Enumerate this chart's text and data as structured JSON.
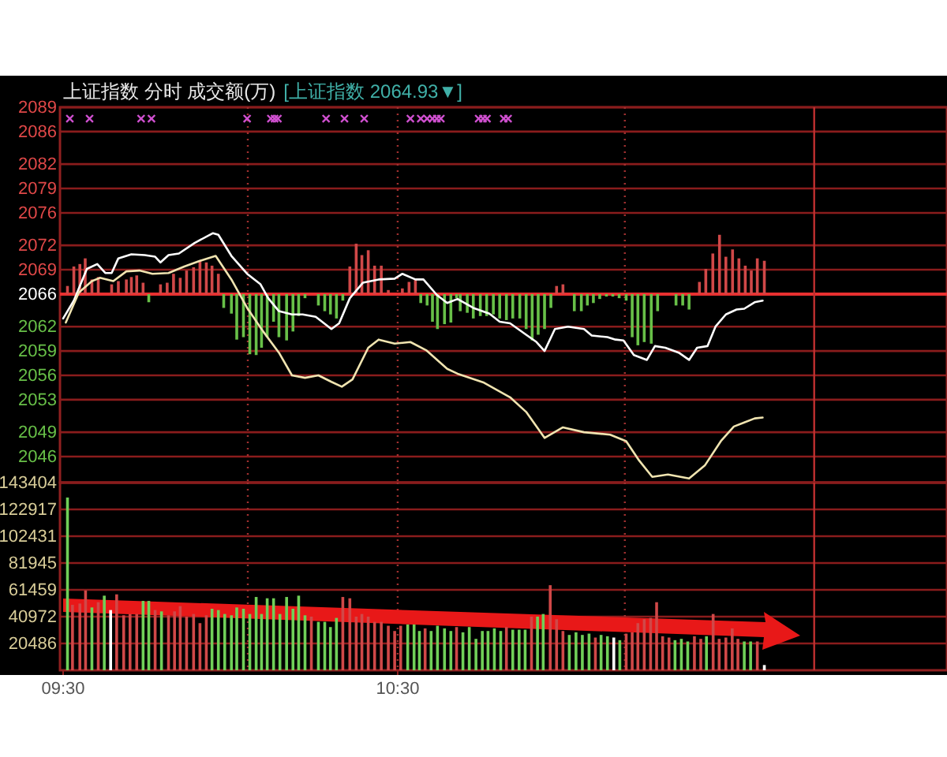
{
  "chart_data": [
    {
      "type": "line",
      "title": "上证指数   分时 成交额(万)",
      "subtitle": "[上证指数 2064.93▼]",
      "xlim": [
        9.5,
        12.142
      ],
      "ylim": [
        2042.8,
        2089
      ],
      "yticks": [
        2089,
        2086,
        2082,
        2079,
        2076,
        2072,
        2069,
        2066,
        2062,
        2059,
        2056,
        2053,
        2049,
        2046
      ],
      "grid": "y",
      "tick_labels": "y",
      "ref_lines": [
        {
          "axis": "y",
          "value": 2066,
          "color": "#e83030",
          "line_style": "solid"
        },
        {
          "axis": "x",
          "value": 10.052,
          "color": "#a03030",
          "line_style": "dotted"
        },
        {
          "axis": "x",
          "value": 10.5,
          "color": "#a03030",
          "line_style": "dotted"
        },
        {
          "axis": "x",
          "value": 11.179,
          "color": "#a03030",
          "line_style": "dotted"
        },
        {
          "axis": "x",
          "value": 11.745,
          "color": "#c03030",
          "line_style": "solid"
        }
      ],
      "series": [
        {
          "type": "bar",
          "color": "#d04848",
          "base": [
            2066,
            2066,
            2066,
            2066,
            2066,
            2066,
            2066,
            2066,
            2066,
            2066,
            2066,
            2066,
            2066,
            2066,
            2066,
            2066,
            2066,
            2066,
            2066,
            2066,
            2066,
            2066,
            2066,
            2066,
            2066,
            2066,
            2066,
            2066,
            2066,
            2066,
            2066,
            2066,
            2066,
            2066,
            2066,
            2066,
            2066,
            2066,
            2066,
            2066,
            2066,
            2066,
            2066,
            2066,
            2066
          ],
          "x": [
            9.513,
            9.532,
            9.55,
            9.566,
            9.586,
            9.605,
            9.645,
            9.665,
            9.689,
            9.704,
            9.72,
            9.739,
            9.791,
            9.811,
            9.83,
            9.85,
            9.869,
            9.89,
            9.909,
            9.928,
            9.945,
            9.964,
            10.357,
            10.376,
            10.393,
            10.412,
            10.431,
            10.451,
            10.472,
            10.514,
            10.534,
            10.553,
            10.975,
            10.994,
            11.402,
            11.421,
            11.442,
            11.462,
            11.481,
            11.501,
            11.52,
            11.539,
            11.557,
            11.575,
            11.596
          ],
          "values": [
            1.0,
            3.4,
            3.7,
            4.4,
            1.8,
            2.1,
            1.2,
            1.6,
            1.8,
            2.1,
            2.3,
            1.4,
            1.2,
            1.4,
            2.5,
            2.0,
            2.9,
            3.3,
            4.1,
            3.9,
            3.5,
            2.5,
            3.4,
            6.2,
            4.8,
            5.4,
            3.5,
            3.5,
            0.5,
            0.7,
            1.5,
            1.8,
            1.0,
            1.2,
            1.5,
            3.1,
            5.0,
            7.3,
            4.6,
            5.5,
            4.4,
            3.5,
            2.9,
            4.4,
            4.1
          ]
        },
        {
          "type": "bar",
          "color": "#68c048",
          "base": [
            2066,
            2066,
            2066,
            2066,
            2066,
            2066,
            2066,
            2066,
            2066,
            2066,
            2066,
            2066,
            2066,
            2066,
            2066,
            2066,
            2066,
            2066,
            2066,
            2066,
            2066,
            2066,
            2066,
            2066,
            2066,
            2066,
            2066,
            2066,
            2066,
            2066,
            2066,
            2066,
            2066,
            2066,
            2066,
            2066,
            2066,
            2066,
            2066,
            2066,
            2066,
            2066,
            2066,
            2066,
            2066,
            2066,
            2066,
            2066,
            2066,
            2066,
            2066,
            2066,
            2066,
            2066,
            2066,
            2066,
            2066,
            2066,
            2066
          ],
          "x": [
            9.756,
            9.98,
            10.003,
            10.019,
            10.039,
            10.058,
            10.077,
            10.093,
            10.11,
            10.129,
            10.145,
            10.168,
            10.187,
            10.204,
            10.223,
            10.263,
            10.282,
            10.299,
            10.317,
            10.336,
            10.569,
            10.588,
            10.604,
            10.619,
            10.64,
            10.659,
            10.676,
            10.687,
            10.708,
            10.726,
            10.747,
            10.766,
            10.786,
            10.805,
            10.825,
            10.844,
            10.865,
            10.884,
            10.902,
            10.92,
            10.939,
            10.958,
            11.028,
            11.049,
            11.067,
            11.085,
            11.104,
            11.124,
            11.143,
            11.162,
            11.183,
            11.201,
            11.218,
            11.237,
            11.258,
            11.277,
            11.332,
            11.352,
            11.371
          ],
          "values": [
            -1.0,
            -1.7,
            -2.4,
            -5.6,
            -5.3,
            -7.4,
            -7.5,
            -6.6,
            -5.3,
            -3.4,
            -5.3,
            -5.7,
            -4.6,
            -2.7,
            -0.5,
            -1.4,
            -2.1,
            -2.5,
            -3.0,
            -0.8,
            -1.1,
            -1.4,
            -3.4,
            -4.3,
            -3.7,
            -3.5,
            -0.5,
            -2.1,
            -2.3,
            -3.0,
            -2.7,
            -2.7,
            -2.5,
            -3.0,
            -3.2,
            -3.0,
            -3.0,
            -4.3,
            -5.7,
            -5.0,
            -4.3,
            -1.7,
            -2.1,
            -2.1,
            -1.4,
            -1.1,
            -0.6,
            -0.3,
            -0.3,
            -0.5,
            -0.8,
            -5.3,
            -6.3,
            -5.9,
            -6.1,
            -2.1,
            -1.4,
            -1.4,
            -1.9
          ]
        },
        {
          "color": "#ffffff",
          "x": [
            9.5,
            9.532,
            9.571,
            9.602,
            9.626,
            9.645,
            9.665,
            9.704,
            9.744,
            9.775,
            9.791,
            9.815,
            9.846,
            9.893,
            9.948,
            9.964,
            10.003,
            10.05,
            10.09,
            10.113,
            10.145,
            10.184,
            10.216,
            10.255,
            10.302,
            10.325,
            10.357,
            10.396,
            10.443,
            10.491,
            10.514,
            10.553,
            10.577,
            10.617,
            10.648,
            10.679,
            10.726,
            10.774,
            10.805,
            10.836,
            10.884,
            10.915,
            10.939,
            10.97,
            11.009,
            11.057,
            11.08,
            11.127,
            11.151,
            11.175,
            11.206,
            11.245,
            11.269,
            11.3,
            11.34,
            11.371,
            11.395,
            11.426,
            11.45,
            11.481,
            11.513,
            11.536,
            11.567,
            11.591
          ],
          "values": [
            2063.0,
            2065.2,
            2069.1,
            2069.7,
            2068.6,
            2068.6,
            2070.4,
            2070.9,
            2070.8,
            2070.6,
            2069.9,
            2070.8,
            2071.0,
            2072.3,
            2073.5,
            2073.3,
            2070.7,
            2068.5,
            2067.2,
            2065.5,
            2063.9,
            2063.5,
            2063.5,
            2063.2,
            2061.7,
            2062.4,
            2065.5,
            2067.4,
            2067.8,
            2067.9,
            2068.5,
            2067.8,
            2067.8,
            2065.9,
            2064.9,
            2065.4,
            2064.3,
            2063.6,
            2062.6,
            2062.4,
            2061.0,
            2060.1,
            2059.0,
            2061.7,
            2062.0,
            2061.7,
            2060.9,
            2060.7,
            2060.4,
            2060.3,
            2058.5,
            2057.9,
            2059.6,
            2059.4,
            2058.8,
            2057.9,
            2059.4,
            2059.6,
            2062.0,
            2063.5,
            2064.1,
            2064.2,
            2065.0,
            2065.2
          ]
        },
        {
          "color": "#f0e4b0",
          "x": [
            9.508,
            9.547,
            9.586,
            9.61,
            9.65,
            9.689,
            9.728,
            9.767,
            9.815,
            9.862,
            9.909,
            9.956,
            10.003,
            10.05,
            10.098,
            10.145,
            10.184,
            10.223,
            10.263,
            10.302,
            10.333,
            10.365,
            10.412,
            10.443,
            10.491,
            10.538,
            10.585,
            10.648,
            10.679,
            10.758,
            10.836,
            10.884,
            10.939,
            10.994,
            11.057,
            11.135,
            11.183,
            11.222,
            11.261,
            11.308,
            11.371,
            11.418,
            11.466,
            11.505,
            11.536,
            11.567,
            11.591
          ],
          "values": [
            2062.5,
            2066.2,
            2067.6,
            2068.0,
            2067.6,
            2068.8,
            2068.9,
            2068.5,
            2068.6,
            2069.4,
            2070.1,
            2070.7,
            2067.8,
            2064.3,
            2061.4,
            2058.8,
            2056.0,
            2055.7,
            2056.0,
            2055.2,
            2054.6,
            2055.5,
            2059.4,
            2060.4,
            2059.9,
            2060.1,
            2059.1,
            2056.8,
            2056.2,
            2055.1,
            2053.3,
            2051.5,
            2048.3,
            2049.6,
            2049.0,
            2048.7,
            2047.9,
            2045.5,
            2043.5,
            2043.8,
            2043.3,
            2044.9,
            2047.9,
            2049.7,
            2050.2,
            2050.7,
            2050.8
          ]
        },
        {
          "type": "scatter",
          "color": "#d050d0",
          "marker": "cross",
          "x": [
            9.52,
            9.579,
            9.733,
            9.764,
            10.05,
            10.121,
            10.132,
            10.142,
            10.286,
            10.341,
            10.4,
            10.538,
            10.569,
            10.588,
            10.604,
            10.617,
            10.629,
            10.742,
            10.755,
            10.767,
            10.817,
            10.83
          ],
          "values": [
            2087.6,
            2087.6,
            2087.6,
            2087.6,
            2087.6,
            2087.6,
            2087.6,
            2087.6,
            2087.6,
            2087.6,
            2087.6,
            2087.6,
            2087.6,
            2087.6,
            2087.6,
            2087.6,
            2087.6,
            2087.6,
            2087.6,
            2087.6,
            2087.6,
            2087.6
          ]
        }
      ]
    },
    {
      "type": "bar",
      "xlim": [
        9.5,
        12.142
      ],
      "xticks": [
        {
          "value": 9.5,
          "label": "09:30"
        },
        {
          "value": 10.5,
          "label": "10:30"
        }
      ],
      "ylim": [
        0,
        143404
      ],
      "yticks": [
        20486,
        40972,
        61459,
        81945,
        102431,
        122917,
        143404
      ],
      "grid": "y",
      "ref_lines": [
        {
          "axis": "x",
          "value": 10.052,
          "color": "#a03030",
          "line_style": "dotted"
        },
        {
          "axis": "x",
          "value": 10.5,
          "color": "#a03030",
          "line_style": "dotted"
        },
        {
          "axis": "x",
          "value": 11.179,
          "color": "#a03030",
          "line_style": "dotted"
        },
        {
          "axis": "x",
          "value": 11.745,
          "color": "#c03030",
          "line_style": "solid"
        }
      ],
      "series": [
        {
          "color": "#d04848",
          "x": [
            9.528,
            9.55,
            9.567,
            9.605,
            9.66,
            9.681,
            9.7,
            9.72,
            9.775,
            9.815,
            9.833,
            9.85,
            9.869,
            9.89,
            9.909,
            9.928,
            10.242,
            10.336,
            10.357,
            10.376,
            10.393,
            10.412,
            10.431,
            10.451,
            10.472,
            10.491,
            10.509,
            10.582,
            10.676,
            10.825,
            10.9,
            10.956,
            10.975,
            10.994,
            11.091,
            11.183,
            11.201,
            11.218,
            11.237,
            11.256,
            11.274,
            11.292,
            11.311,
            11.387,
            11.406,
            11.443,
            11.461,
            11.481,
            11.5,
            11.517,
            11.575
          ],
          "values": [
            50000,
            51000,
            61000,
            52000,
            58000,
            42000,
            43000,
            43000,
            46000,
            42000,
            45000,
            49000,
            41000,
            43000,
            36000,
            42000,
            41000,
            56000,
            55000,
            41000,
            43000,
            41000,
            37000,
            37000,
            34000,
            30000,
            34000,
            32000,
            33000,
            33000,
            41000,
            65000,
            39000,
            30000,
            25000,
            28000,
            29000,
            36000,
            39000,
            40000,
            52000,
            26000,
            25000,
            26000,
            24000,
            43000,
            24000,
            25000,
            32000,
            24000,
            22000
          ]
        },
        {
          "color": "#70d058",
          "x": [
            9.513,
            9.586,
            9.623,
            9.739,
            9.756,
            9.794,
            9.945,
            9.964,
            9.983,
            10.003,
            10.019,
            10.039,
            10.058,
            10.077,
            10.093,
            10.11,
            10.129,
            10.148,
            10.168,
            10.187,
            10.204,
            10.223,
            10.263,
            10.282,
            10.299,
            10.317,
            10.53,
            10.549,
            10.565,
            10.6,
            10.619,
            10.64,
            10.659,
            10.695,
            10.714,
            10.734,
            10.753,
            10.77,
            10.789,
            10.808,
            10.844,
            10.863,
            10.881,
            10.918,
            10.935,
            11.013,
            11.033,
            11.052,
            11.072,
            11.108,
            11.127,
            11.164,
            11.329,
            11.348,
            11.367,
            11.423,
            11.536,
            11.555
          ],
          "values": [
            132000,
            48000,
            57000,
            53000,
            53000,
            45000,
            47000,
            46000,
            43000,
            42000,
            48000,
            47000,
            43000,
            56000,
            43000,
            55000,
            55000,
            43000,
            56000,
            47000,
            57000,
            42000,
            37000,
            37000,
            33000,
            40000,
            35000,
            35000,
            30000,
            30000,
            34000,
            32000,
            30000,
            29000,
            33000,
            24000,
            30000,
            30000,
            32000,
            30000,
            31000,
            31000,
            31000,
            41000,
            43000,
            27000,
            29000,
            27000,
            28000,
            27000,
            26000,
            23000,
            23000,
            24000,
            22000,
            26000,
            22000,
            22000
          ]
        },
        {
          "color": "#ffffff",
          "x": [
            9.642,
            11.146,
            11.596
          ],
          "values": [
            46000,
            25000,
            4000
          ]
        }
      ]
    }
  ]
}
